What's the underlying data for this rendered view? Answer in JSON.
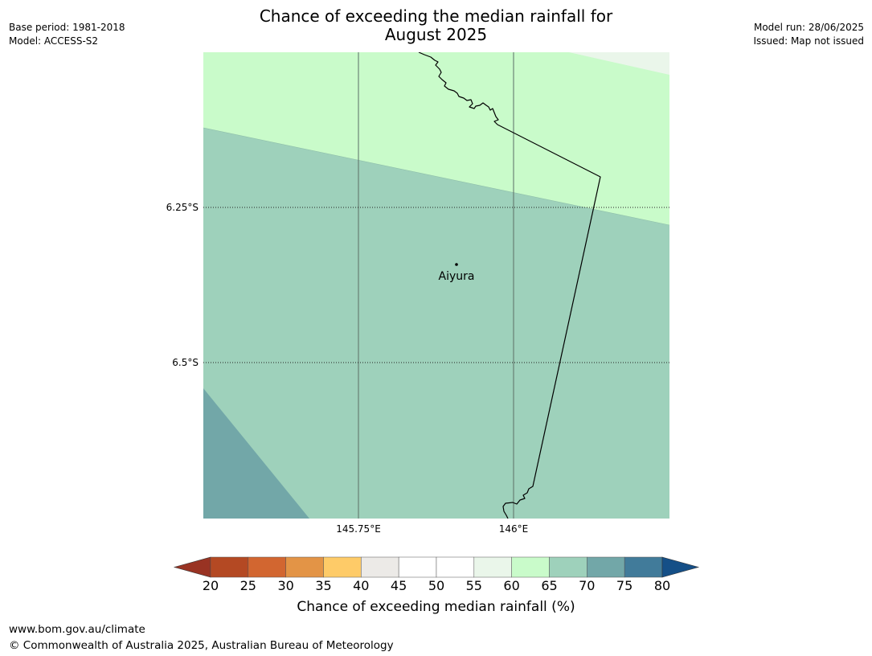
{
  "title": {
    "line1": "Chance of exceeding the median rainfall for",
    "line2": "August 2025"
  },
  "meta_left": {
    "base_period": "Base period: 1981-2018",
    "model": "Model: ACCESS-S2"
  },
  "meta_right": {
    "model_run": "Model run: 28/06/2025",
    "issued": "Issued: Map not issued"
  },
  "map": {
    "latitude_ticks": [
      "6.25°S",
      "6.5°S"
    ],
    "longitude_ticks": [
      "145.75°E",
      "146°E"
    ],
    "place_label": "Aiyura",
    "region_colors": {
      "c55_60": "#eaf6ea",
      "c60_65": "#c9fbca",
      "c65_70": "#9ed1bb",
      "c70_75": "#72a7a8"
    }
  },
  "colorbar": {
    "title": "Chance of exceeding median rainfall (%)",
    "tick_labels": [
      "20",
      "25",
      "30",
      "35",
      "40",
      "45",
      "50",
      "55",
      "60",
      "65",
      "70",
      "75",
      "80"
    ],
    "under_color": "#993323",
    "over_color": "#154f87",
    "colors": [
      "#b44923",
      "#d26630",
      "#e39446",
      "#fecb68",
      "#eceae7",
      "#ffffff",
      "#ffffff",
      "#eaf6ea",
      "#c9fbca",
      "#9ed1bb",
      "#72a7a8",
      "#417b9a"
    ]
  },
  "footer": {
    "url": "www.bom.gov.au/climate",
    "copyright": "© Commonwealth of Australia 2025, Australian Bureau of Meteorology"
  }
}
